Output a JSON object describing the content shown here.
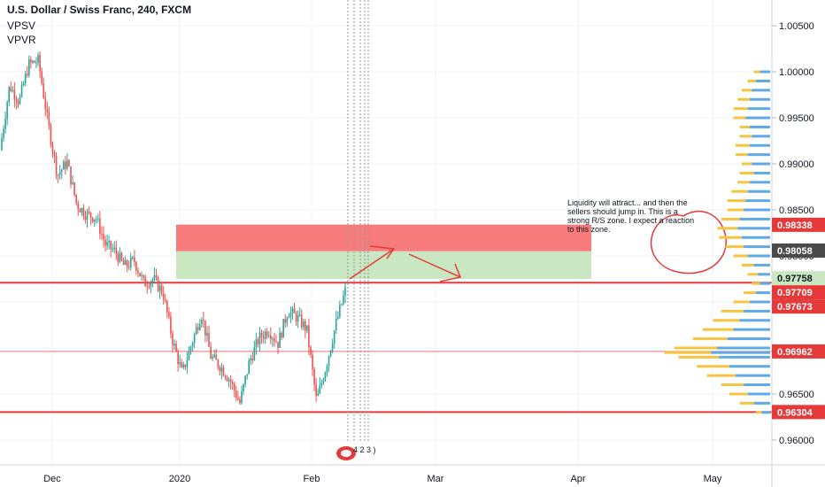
{
  "header": {
    "title": "U.S. Dollar / Swiss Franc, 240, FXCM",
    "indicator_1": "VPSV",
    "indicator_2": "VPVR"
  },
  "annotation": {
    "text": "Liquidity will attract... and then the sellers should jump in. This is a strong R/S zone. I expect a reaction to this zone."
  },
  "event_marker": {
    "label": "4 2 3 )"
  },
  "colors": {
    "accent_red": "#e63a3a",
    "zone_red": "#f77b7b",
    "zone_green": "#c9e8c1",
    "candle_up": "#26a69a",
    "candle_down": "#ef5350",
    "volume_blue": "#5ea9e6",
    "volume_yellow": "#f5c542",
    "current_price_bg": "#c9e8c1",
    "dark_tag": "#4a4a4a"
  },
  "chart_data": {
    "type": "candlestick",
    "symbol": "USDCHF",
    "x_ticks": [
      {
        "label": "Dec",
        "idx": 0
      },
      {
        "label": "2020",
        "idx": 1
      },
      {
        "label": "Feb",
        "idx": 2
      },
      {
        "label": "Mar",
        "idx": 3
      },
      {
        "label": "Apr",
        "idx": 4
      },
      {
        "label": "May",
        "idx": 5
      }
    ],
    "y_ticks": [
      1.005,
      1.0,
      0.995,
      0.99,
      0.985,
      0.98,
      0.975,
      0.97,
      0.965,
      0.96
    ],
    "y_tick_labels": [
      "1.00500",
      "1.00000",
      "0.99500",
      "0.99000",
      "0.98500",
      "0.98000",
      "0.97500",
      "0.97000",
      "0.96500",
      "0.96000"
    ],
    "ylim": [
      0.9573,
      1.0078
    ],
    "price_path": [
      0.9915,
      0.9985,
      0.9968,
      1.0008,
      1.0012,
      0.9945,
      0.9888,
      0.9902,
      0.9856,
      0.9845,
      0.9842,
      0.9812,
      0.9805,
      0.9788,
      0.9795,
      0.977,
      0.9775,
      0.976,
      0.9708,
      0.9672,
      0.9705,
      0.9738,
      0.969,
      0.968,
      0.9665,
      0.964,
      0.9685,
      0.971,
      0.972,
      0.9705,
      0.974,
      0.9733,
      0.972,
      0.9642,
      0.968,
      0.9725,
      0.9762
    ],
    "resistance_zone": [
      0.9805,
      0.9834
    ],
    "support_zone": [
      0.9775,
      0.9805
    ],
    "horizontal_lines": [
      0.97709,
      0.96962,
      0.96304
    ],
    "price_labels": [
      {
        "text": "0.98338",
        "value": 0.98338,
        "style": "red"
      },
      {
        "text": "0.98058",
        "value": 0.98058,
        "style": "dark"
      },
      {
        "text": "0.97758",
        "value": 0.97758,
        "style": "green"
      },
      {
        "text": "0.97709",
        "value": 0.97709,
        "style": "red"
      },
      {
        "text": "0.97673",
        "value": 0.97673,
        "style": "red"
      },
      {
        "text": "0.96962",
        "value": 0.96962,
        "style": "red"
      },
      {
        "text": "0.96304",
        "value": 0.96304,
        "style": "red"
      }
    ],
    "volume_profile": [
      {
        "price": 1.0,
        "buy": 10,
        "sell": 6
      },
      {
        "price": 0.999,
        "buy": 14,
        "sell": 8
      },
      {
        "price": 0.998,
        "buy": 18,
        "sell": 10
      },
      {
        "price": 0.997,
        "buy": 20,
        "sell": 12
      },
      {
        "price": 0.996,
        "buy": 22,
        "sell": 14
      },
      {
        "price": 0.995,
        "buy": 24,
        "sell": 12
      },
      {
        "price": 0.994,
        "buy": 20,
        "sell": 10
      },
      {
        "price": 0.993,
        "buy": 18,
        "sell": 12
      },
      {
        "price": 0.992,
        "buy": 20,
        "sell": 14
      },
      {
        "price": 0.991,
        "buy": 22,
        "sell": 12
      },
      {
        "price": 0.99,
        "buy": 18,
        "sell": 10
      },
      {
        "price": 0.989,
        "buy": 16,
        "sell": 14
      },
      {
        "price": 0.988,
        "buy": 20,
        "sell": 12
      },
      {
        "price": 0.987,
        "buy": 22,
        "sell": 16
      },
      {
        "price": 0.986,
        "buy": 24,
        "sell": 18
      },
      {
        "price": 0.985,
        "buy": 26,
        "sell": 16
      },
      {
        "price": 0.984,
        "buy": 30,
        "sell": 18
      },
      {
        "price": 0.983,
        "buy": 32,
        "sell": 20
      },
      {
        "price": 0.982,
        "buy": 28,
        "sell": 22
      },
      {
        "price": 0.981,
        "buy": 26,
        "sell": 18
      },
      {
        "price": 0.98,
        "buy": 22,
        "sell": 14
      },
      {
        "price": 0.979,
        "buy": 16,
        "sell": 12
      },
      {
        "price": 0.978,
        "buy": 12,
        "sell": 10
      },
      {
        "price": 0.977,
        "buy": 10,
        "sell": 8
      },
      {
        "price": 0.976,
        "buy": 14,
        "sell": 12
      },
      {
        "price": 0.975,
        "buy": 20,
        "sell": 16
      },
      {
        "price": 0.974,
        "buy": 26,
        "sell": 22
      },
      {
        "price": 0.973,
        "buy": 30,
        "sell": 26
      },
      {
        "price": 0.972,
        "buy": 36,
        "sell": 30
      },
      {
        "price": 0.971,
        "buy": 42,
        "sell": 34
      },
      {
        "price": 0.97,
        "buy": 52,
        "sell": 42
      },
      {
        "price": 0.9695,
        "buy": 58,
        "sell": 46
      },
      {
        "price": 0.969,
        "buy": 50,
        "sell": 40
      },
      {
        "price": 0.968,
        "buy": 40,
        "sell": 32
      },
      {
        "price": 0.967,
        "buy": 34,
        "sell": 28
      },
      {
        "price": 0.966,
        "buy": 26,
        "sell": 22
      },
      {
        "price": 0.965,
        "buy": 22,
        "sell": 18
      },
      {
        "price": 0.964,
        "buy": 16,
        "sell": 14
      },
      {
        "price": 0.963,
        "buy": 8,
        "sell": 6
      }
    ]
  }
}
